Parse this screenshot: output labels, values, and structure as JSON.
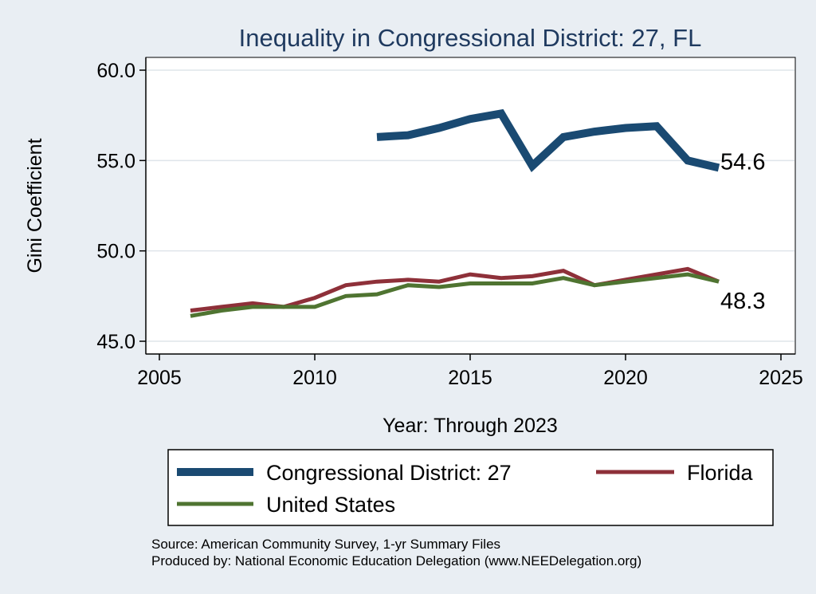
{
  "chart_data": {
    "type": "line",
    "title": "Inequality in Congressional District:  27, FL",
    "xlabel": "Year: Through 2023",
    "ylabel": "Gini Coefficient",
    "xlim": [
      2005,
      2025
    ],
    "ylim": [
      45,
      60
    ],
    "x_ticks": [
      2005,
      2010,
      2015,
      2020,
      2025
    ],
    "x_tick_labels": [
      "2005",
      "2010",
      "2015",
      "2020",
      "2025"
    ],
    "y_ticks": [
      45,
      50,
      55,
      60
    ],
    "y_tick_labels": [
      "45.0",
      "50.0",
      "55.0",
      "60.0"
    ],
    "grid": true,
    "legend_position": "bottom",
    "series": [
      {
        "name": "Congressional District:  27",
        "color": "#1a4a72",
        "line": "thick",
        "x": [
          2012,
          2013,
          2014,
          2015,
          2016,
          2017,
          2018,
          2019,
          2020,
          2021,
          2022,
          2023
        ],
        "y": [
          56.3,
          56.4,
          56.8,
          57.3,
          57.6,
          54.7,
          56.3,
          56.6,
          56.8,
          56.9,
          55.0,
          54.6
        ]
      },
      {
        "name": "Florida",
        "color": "#8e3039",
        "line": "medium",
        "x": [
          2006,
          2007,
          2008,
          2009,
          2010,
          2011,
          2012,
          2013,
          2014,
          2015,
          2016,
          2017,
          2018,
          2019,
          2020,
          2021,
          2022,
          2023
        ],
        "y": [
          46.7,
          46.9,
          47.1,
          46.9,
          47.4,
          48.1,
          48.3,
          48.4,
          48.3,
          48.7,
          48.5,
          48.6,
          48.9,
          48.1,
          48.4,
          48.7,
          49.0,
          48.3
        ]
      },
      {
        "name": "United States",
        "color": "#4f7431",
        "line": "medium",
        "x": [
          2006,
          2007,
          2008,
          2009,
          2010,
          2011,
          2012,
          2013,
          2014,
          2015,
          2016,
          2017,
          2018,
          2019,
          2020,
          2021,
          2022,
          2023
        ],
        "y": [
          46.4,
          46.7,
          46.9,
          46.9,
          46.9,
          47.5,
          47.6,
          48.1,
          48.0,
          48.2,
          48.2,
          48.2,
          48.5,
          48.1,
          48.3,
          48.5,
          48.7,
          48.3
        ]
      }
    ],
    "end_labels": [
      {
        "text": "54.6",
        "x": 2023,
        "y": 54.6,
        "series": 0
      },
      {
        "text": "48.3",
        "x": 2023,
        "y": 48.3,
        "series": 1
      }
    ],
    "notes": [
      "Source: American Community Survey, 1-yr Summary Files",
      "Produced by: National Economic Education Delegation (www.NEEDelegation.org)"
    ]
  }
}
